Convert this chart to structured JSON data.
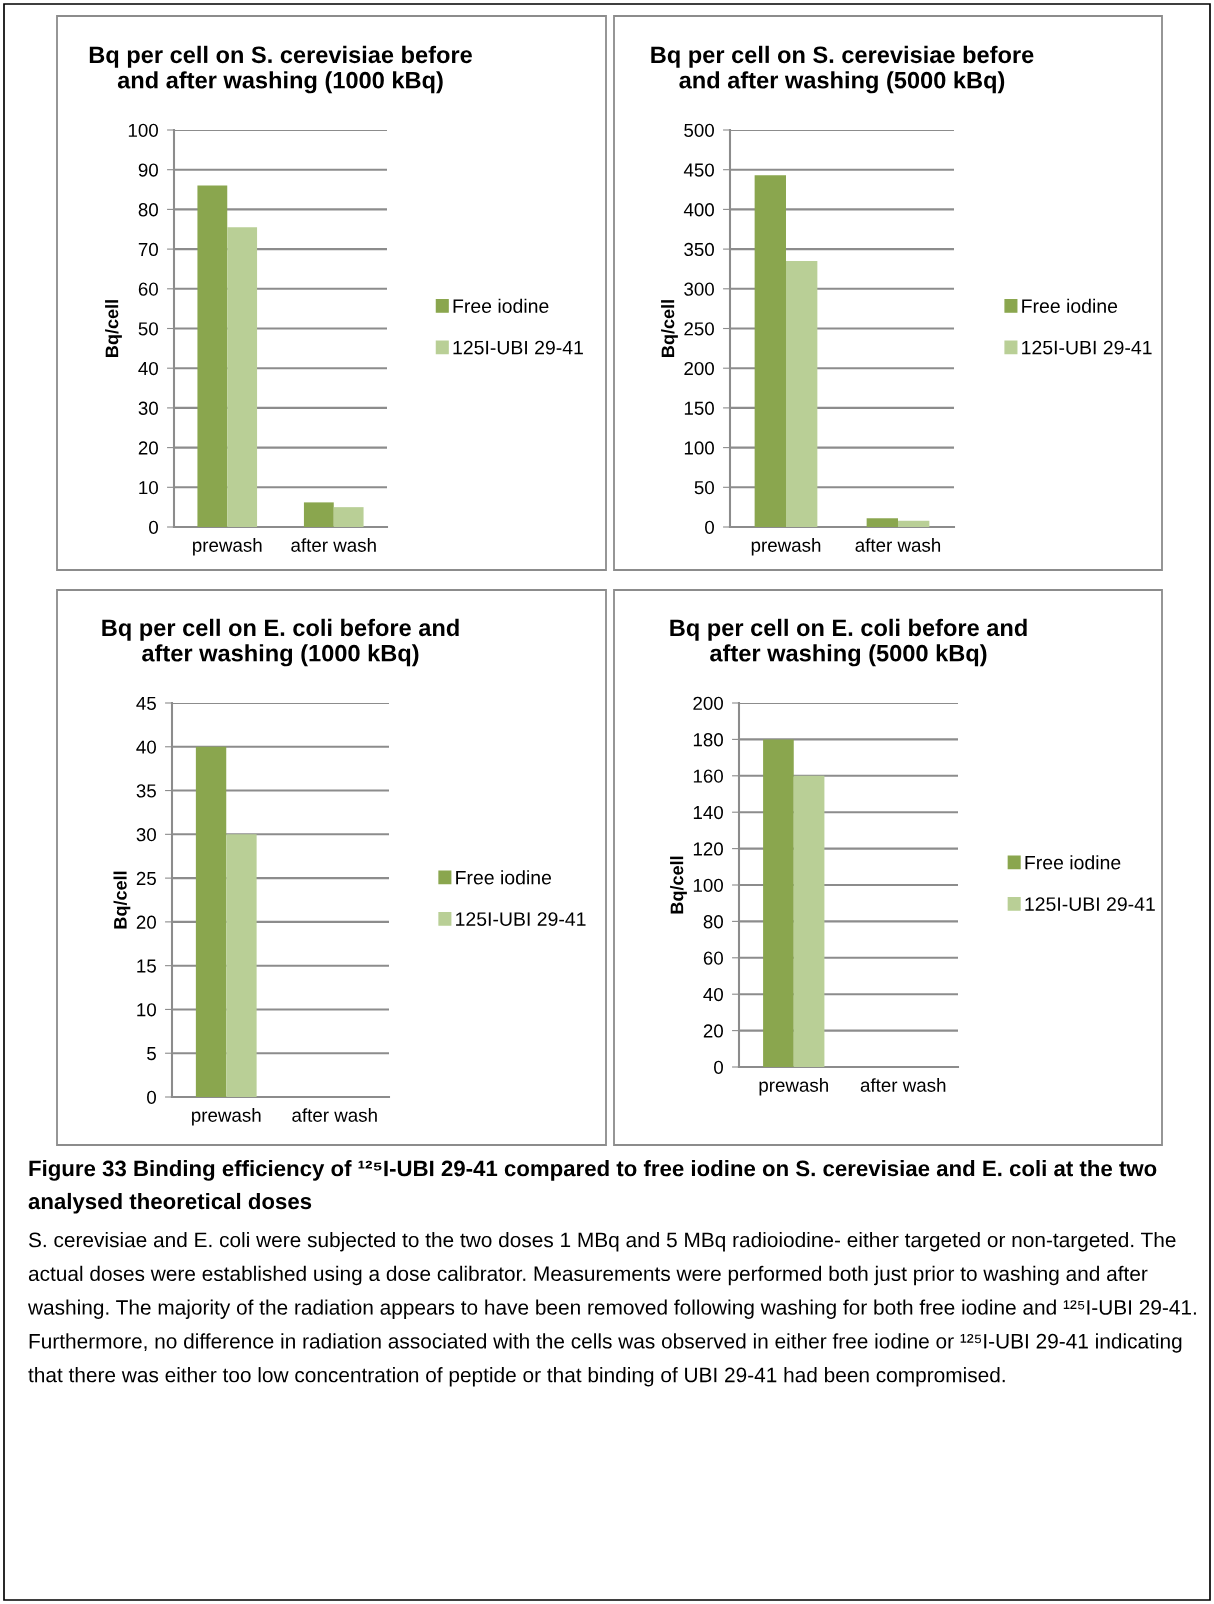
{
  "chart_data": [
    {
      "type": "bar",
      "title": "Bq per cell on S. cerevisiae before\nand after washing (1000 kBq)",
      "ylabel": "Bq/cell",
      "categories": [
        "prewash",
        "after wash"
      ],
      "series": [
        {
          "name": "Free iodine",
          "color": "#8aa64e",
          "values": [
            86,
            6.2
          ]
        },
        {
          "name": "125I-UBI 29-41",
          "color": "#b9cf96",
          "values": [
            75.5,
            5
          ]
        }
      ],
      "ylim": [
        0,
        100
      ],
      "yticks": [
        0,
        10,
        20,
        30,
        40,
        50,
        60,
        70,
        80,
        90,
        100
      ],
      "grid": "y",
      "legend": "right"
    },
    {
      "type": "bar",
      "title": "Bq per cell on S. cerevisiae before\nand after washing (5000 kBq)",
      "ylabel": "Bq/cell",
      "categories": [
        "prewash",
        "after wash"
      ],
      "series": [
        {
          "name": "Free iodine",
          "color": "#8aa64e",
          "values": [
            443,
            11
          ]
        },
        {
          "name": "125I-UBI 29-41",
          "color": "#b9cf96",
          "values": [
            335,
            8
          ]
        }
      ],
      "ylim": [
        0,
        500
      ],
      "yticks": [
        0,
        50,
        100,
        150,
        200,
        250,
        300,
        350,
        400,
        450,
        500
      ],
      "grid": "y",
      "legend": "right"
    },
    {
      "type": "bar",
      "title": "Bq per cell on E. coli before and\nafter washing (1000 kBq)",
      "ylabel": "Bq/cell",
      "categories": [
        "prewash",
        "after wash"
      ],
      "series": [
        {
          "name": "Free iodine",
          "color": "#8aa64e",
          "values": [
            40,
            0
          ]
        },
        {
          "name": "125I-UBI 29-41",
          "color": "#b9cf96",
          "values": [
            30,
            0
          ]
        }
      ],
      "ylim": [
        0,
        45
      ],
      "yticks": [
        0,
        5,
        10,
        15,
        20,
        25,
        30,
        35,
        40,
        45
      ],
      "grid": "y",
      "legend": "right"
    },
    {
      "type": "bar",
      "title": "Bq per cell on E. coli before and\nafter washing (5000 kBq)",
      "ylabel": "Bq/cell",
      "categories": [
        "prewash",
        "after wash"
      ],
      "series": [
        {
          "name": "Free iodine",
          "color": "#8aa64e",
          "values": [
            180,
            0
          ]
        },
        {
          "name": "125I-UBI 29-41",
          "color": "#b9cf96",
          "values": [
            160,
            0
          ]
        }
      ],
      "ylim": [
        0,
        200
      ],
      "yticks": [
        0,
        20,
        40,
        60,
        80,
        100,
        120,
        140,
        160,
        180,
        200
      ],
      "grid": "y",
      "legend": "right",
      "annotations": [
        "Figure 33 Binding efficiency of ¹²⁵I-UBI 29-41 compared to free iodine on S. cerevisiae and E. coli at the two analysed theoretical doses",
        "S. cerevisiae and E. coli were subjected to the two doses 1 MBq and 5 MBq radioiodine- either targeted or non-targeted. The actual doses were established using a dose calibrator. Measurements were performed both just prior to washing and after washing. The majority of the radiation appears to have been removed following washing for both free iodine and ¹²⁵I-UBI 29-41. Furthermore, no difference in radiation associated with the cells was observed in either free iodine or ¹²⁵I-UBI 29-41 indicating that there was either too low concentration of peptide or that binding of UBI 29-41 had been compromised."
      ]
    }
  ]
}
